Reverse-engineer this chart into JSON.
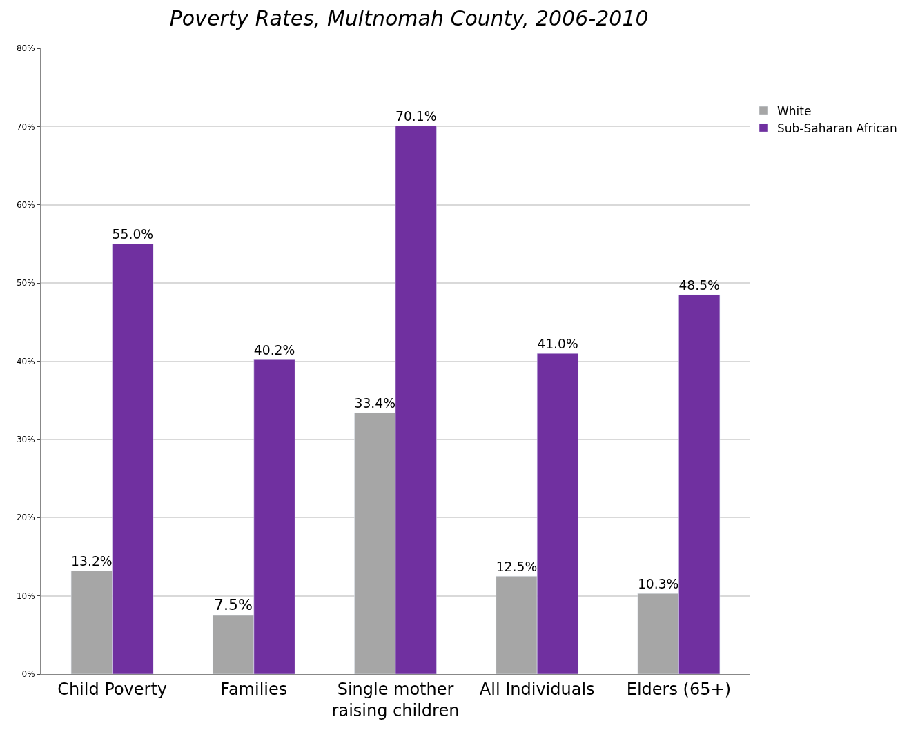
{
  "chart_data": {
    "type": "bar",
    "title": "Poverty Rates, Multnomah County, 2006-2010",
    "categories": [
      "Child Poverty",
      "Families",
      "Single mother raising children",
      "All Individuals",
      "Elders (65+)"
    ],
    "series": [
      {
        "name": "White",
        "color": "#a6a6a6",
        "values": [
          13.2,
          7.5,
          33.4,
          12.5,
          10.3
        ],
        "value_labels": [
          "13.2%",
          "7.5%",
          "33.4%",
          "12.5%",
          "10.3%"
        ]
      },
      {
        "name": "Sub-Saharan African",
        "color": "#7030a0",
        "values": [
          55.0,
          40.2,
          70.1,
          41.0,
          48.5
        ],
        "value_labels": [
          "55.0%",
          "40.2%",
          "70.1%",
          "41.0%",
          "48.5%"
        ]
      }
    ],
    "ylim": [
      0,
      80
    ],
    "yticks": [
      {
        "value": 0,
        "label": "0%"
      },
      {
        "value": 10,
        "label": "10%"
      },
      {
        "value": 20,
        "label": "20%"
      },
      {
        "value": 30,
        "label": "30%"
      },
      {
        "value": 40,
        "label": "40%"
      },
      {
        "value": 50,
        "label": "50%"
      },
      {
        "value": 60,
        "label": "60%"
      },
      {
        "value": 70,
        "label": "70%"
      },
      {
        "value": 80,
        "label": "80%"
      }
    ],
    "grid": "y",
    "legend": "top right"
  }
}
